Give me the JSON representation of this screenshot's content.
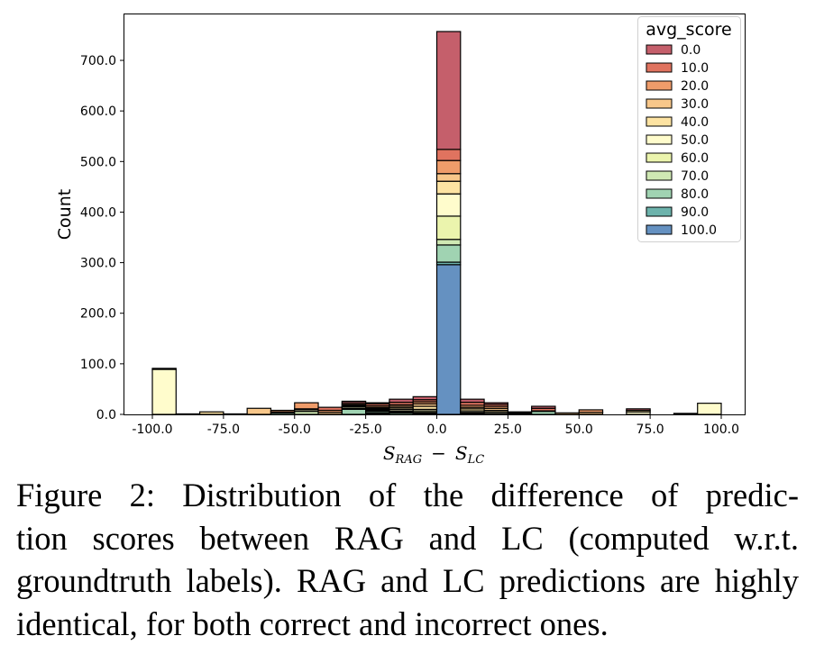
{
  "chart_data": {
    "type": "bar",
    "stacked": true,
    "xlabel": {
      "var1": "S",
      "sub1": "RAG",
      "op": "−",
      "var2": "S",
      "sub2": "LC"
    },
    "ylabel": "Count",
    "xlim": [
      -110,
      110
    ],
    "ylim": [
      0,
      780
    ],
    "x_ticks": [
      "-100.0",
      "-75.0",
      "-50.0",
      "-25.0",
      "0.0",
      "25.0",
      "50.0",
      "75.0",
      "100.0"
    ],
    "x_tick_values": [
      -100,
      -75,
      -50,
      -25,
      0,
      25,
      50,
      75,
      100
    ],
    "y_ticks": [
      "0.0",
      "100.0",
      "200.0",
      "300.0",
      "400.0",
      "500.0",
      "600.0",
      "700.0"
    ],
    "y_tick_values": [
      0,
      100,
      200,
      300,
      400,
      500,
      600,
      700
    ],
    "bin_width": 8.333,
    "bin_starts": [
      -100,
      -91.67,
      -83.33,
      -75,
      -66.67,
      -58.33,
      -50,
      -41.67,
      -33.33,
      -25,
      -16.67,
      -8.33,
      0,
      8.33,
      16.67,
      25,
      33.33,
      41.67,
      50,
      58.33,
      66.67,
      75,
      83.33,
      91.67
    ],
    "legend": {
      "title": "avg_score",
      "placement": "top-right",
      "entries": [
        "0.0",
        "10.0",
        "20.0",
        "30.0",
        "40.0",
        "50.0",
        "60.0",
        "70.0",
        "80.0",
        "90.0",
        "100.0"
      ],
      "colors": [
        "#c55f6b",
        "#e0735f",
        "#ef9c6a",
        "#f8c78a",
        "#fde3a2",
        "#fffccc",
        "#ebf4ad",
        "#cfe8b3",
        "#a0d3b2",
        "#6db3ac",
        "#6591c1"
      ]
    },
    "series_order_note": "counts per bin for avg_score 0,10,...,100",
    "counts": [
      [
        0,
        0,
        0,
        0,
        2,
        89,
        0,
        0,
        0,
        0,
        0
      ],
      [
        0,
        0,
        0,
        0,
        0,
        1,
        0,
        0,
        0,
        0,
        0
      ],
      [
        0,
        0,
        0,
        0,
        5,
        0,
        0,
        0,
        0,
        0,
        0
      ],
      [
        0,
        0,
        0,
        1,
        0,
        0,
        0,
        0,
        0,
        0,
        0
      ],
      [
        0,
        0,
        0,
        12,
        0,
        0,
        0,
        0,
        0,
        0,
        0
      ],
      [
        0,
        0,
        3,
        0,
        0,
        0,
        2,
        0,
        3,
        0,
        0
      ],
      [
        0,
        0,
        12,
        2,
        0,
        3,
        0,
        6,
        0,
        0,
        0
      ],
      [
        0,
        6,
        4,
        4,
        0,
        0,
        0,
        0,
        0,
        0,
        0
      ],
      [
        3,
        3,
        2,
        2,
        1,
        3,
        2,
        0,
        10,
        0,
        0
      ],
      [
        2,
        4,
        3,
        2,
        2,
        2,
        2,
        0,
        3,
        2,
        1
      ],
      [
        6,
        5,
        3,
        3,
        3,
        3,
        2,
        2,
        3,
        0,
        0
      ],
      [
        6,
        4,
        4,
        5,
        6,
        3,
        3,
        2,
        2,
        0,
        0
      ],
      [
        233,
        22,
        26,
        15,
        25,
        44,
        46,
        11,
        34,
        5,
        296
      ],
      [
        6,
        6,
        4,
        3,
        4,
        3,
        2,
        0,
        2,
        0,
        0
      ],
      [
        3,
        4,
        4,
        4,
        3,
        3,
        2,
        0,
        0,
        0,
        0
      ],
      [
        1,
        2,
        2,
        0,
        0,
        0,
        0,
        0,
        0,
        0,
        0
      ],
      [
        4,
        5,
        0,
        1,
        0,
        0,
        0,
        0,
        6,
        0,
        0
      ],
      [
        0,
        0,
        0,
        3,
        0,
        0,
        0,
        0,
        0,
        0,
        0
      ],
      [
        0,
        0,
        5,
        4,
        0,
        0,
        0,
        0,
        0,
        0,
        0
      ],
      [
        0,
        0,
        0,
        0,
        0,
        0,
        0,
        0,
        0,
        0,
        0
      ],
      [
        3,
        0,
        0,
        0,
        3,
        5,
        0,
        0,
        0,
        0,
        0
      ],
      [
        0,
        0,
        0,
        0,
        0,
        0,
        0,
        0,
        0,
        0,
        0
      ],
      [
        0,
        0,
        0,
        0,
        0,
        2,
        0,
        0,
        0,
        0,
        0
      ],
      [
        0,
        0,
        0,
        0,
        0,
        22,
        0,
        0,
        0,
        0,
        0
      ]
    ]
  },
  "caption": {
    "lines": [
      "Figure 2:  Distribution of the difference of predic-",
      "tion scores between RAG and LC (computed w.r.t.",
      "groundtruth labels). RAG and LC predictions are highly",
      "identical, for both correct and incorrect ones."
    ]
  }
}
